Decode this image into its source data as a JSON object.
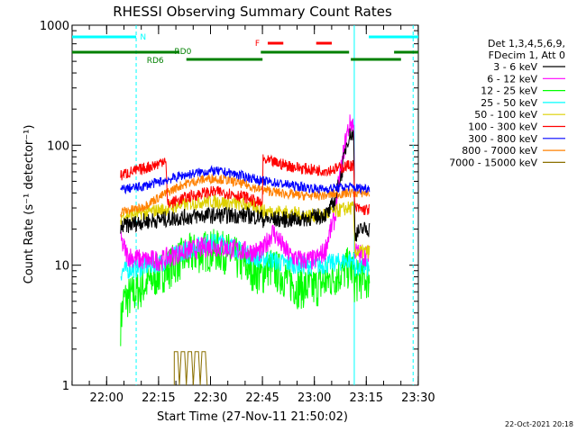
{
  "chart_data": {
    "type": "line",
    "title": "RHESSI Observing Summary Count Rates",
    "xlabel": "Start Time (27-Nov-11 21:50:02)",
    "ylabel": "Count Rate (s⁻¹ detector⁻¹)",
    "yscale": "log",
    "ylim": [
      1,
      1000
    ],
    "xlim_minutes": [
      0,
      100
    ],
    "x_ticks": [
      {
        "m": 9.97,
        "label": "22:00"
      },
      {
        "m": 24.97,
        "label": "22:15"
      },
      {
        "m": 39.97,
        "label": "22:30"
      },
      {
        "m": 54.97,
        "label": "22:45"
      },
      {
        "m": 69.97,
        "label": "23:00"
      },
      {
        "m": 84.97,
        "label": "23:15"
      },
      {
        "m": 99.97,
        "label": "23:30"
      }
    ],
    "y_ticks": [
      {
        "v": 1,
        "label": "1"
      },
      {
        "v": 10,
        "label": "10"
      },
      {
        "v": 100,
        "label": "100"
      },
      {
        "v": 1000,
        "label": "1000"
      }
    ],
    "legend": {
      "position": "right",
      "header": [
        "Det 1,3,4,5,6,9,",
        "FDecim 1, Att 0"
      ]
    },
    "series": [
      {
        "name": "3 - 6 keV",
        "color": "#000000",
        "pts": [
          [
            14,
            19
          ],
          [
            14.5,
            21
          ],
          [
            20,
            23
          ],
          [
            26,
            24
          ],
          [
            32,
            25
          ],
          [
            38,
            26
          ],
          [
            44,
            26
          ],
          [
            50,
            26
          ],
          [
            55,
            25
          ],
          [
            55.1,
            24
          ],
          [
            60,
            24
          ],
          [
            65,
            24
          ],
          [
            70,
            25
          ],
          [
            74,
            27
          ],
          [
            76,
            35
          ],
          [
            78,
            60
          ],
          [
            79.5,
            110
          ],
          [
            80.5,
            125
          ],
          [
            81.3,
            120
          ],
          [
            81.6,
            18
          ],
          [
            84,
            20
          ],
          [
            86,
            20
          ]
        ]
      },
      {
        "name": "6 - 12 keV",
        "color": "#ff00ff",
        "pts": [
          [
            14,
            16
          ],
          [
            16,
            12
          ],
          [
            20,
            11
          ],
          [
            26,
            11
          ],
          [
            32,
            13
          ],
          [
            38,
            14
          ],
          [
            40,
            14.5
          ],
          [
            44,
            14
          ],
          [
            50,
            13
          ],
          [
            55,
            13
          ],
          [
            58,
            19
          ],
          [
            61,
            14
          ],
          [
            63,
            12
          ],
          [
            66,
            11
          ],
          [
            70,
            11
          ],
          [
            73,
            13
          ],
          [
            76,
            25
          ],
          [
            78,
            70
          ],
          [
            79.5,
            130
          ],
          [
            80.5,
            155
          ],
          [
            81.3,
            150
          ],
          [
            81.6,
            13
          ],
          [
            84,
            12
          ],
          [
            86,
            12
          ]
        ]
      },
      {
        "name": "12 - 25 keV",
        "color": "#00ff00",
        "pts": [
          [
            14,
            3.2
          ],
          [
            15,
            5.2
          ],
          [
            17,
            5.5
          ],
          [
            20,
            6.5
          ],
          [
            24,
            8
          ],
          [
            28,
            9.5
          ],
          [
            33,
            12
          ],
          [
            38,
            13
          ],
          [
            41,
            13.3
          ],
          [
            45,
            12.5
          ],
          [
            50,
            10
          ],
          [
            55,
            8
          ],
          [
            56,
            10
          ],
          [
            60,
            8.5
          ],
          [
            65,
            6.5
          ],
          [
            70,
            6.5
          ],
          [
            74,
            7.5
          ],
          [
            77,
            8.5
          ],
          [
            80,
            9.5
          ],
          [
            81.3,
            9
          ],
          [
            81.6,
            7
          ],
          [
            84,
            8
          ],
          [
            86,
            7.5
          ]
        ]
      },
      {
        "name": "25 - 50 keV",
        "color": "#00ffff",
        "pts": [
          [
            14,
            8.5
          ],
          [
            14.5,
            9
          ],
          [
            20,
            9.5
          ],
          [
            26,
            10.5
          ],
          [
            32,
            13
          ],
          [
            38,
            15
          ],
          [
            41,
            15.5
          ],
          [
            45,
            15
          ],
          [
            50,
            12.5
          ],
          [
            55,
            11
          ],
          [
            56,
            11.5
          ],
          [
            60,
            10.5
          ],
          [
            66,
            10
          ],
          [
            72,
            10
          ],
          [
            76,
            10.5
          ],
          [
            80,
            11
          ],
          [
            81.3,
            11
          ],
          [
            81.6,
            9.5
          ],
          [
            84,
            9.5
          ],
          [
            86,
            9.5
          ]
        ]
      },
      {
        "name": "50 - 100 keV",
        "color": "#ddd000",
        "pts": [
          [
            14,
            24
          ],
          [
            14.5,
            26
          ],
          [
            20,
            27
          ],
          [
            26,
            29
          ],
          [
            32,
            32
          ],
          [
            38,
            34
          ],
          [
            41,
            34
          ],
          [
            45,
            33
          ],
          [
            50,
            32
          ],
          [
            55,
            30
          ],
          [
            55.1,
            28
          ],
          [
            60,
            28
          ],
          [
            64,
            27
          ],
          [
            68,
            26
          ],
          [
            72,
            26
          ],
          [
            76,
            28
          ],
          [
            80,
            30
          ],
          [
            81.3,
            30
          ],
          [
            81.6,
            13
          ],
          [
            84,
            13
          ],
          [
            86,
            13
          ]
        ]
      },
      {
        "name": "100 - 300 keV",
        "color": "#ff0000",
        "pts": [
          [
            14,
            55
          ],
          [
            14.5,
            57
          ],
          [
            20,
            63
          ],
          [
            25,
            70
          ],
          [
            27,
            78
          ],
          [
            27.5,
            32
          ],
          [
            32,
            36
          ],
          [
            38,
            40
          ],
          [
            41,
            41
          ],
          [
            45,
            40
          ],
          [
            50,
            37
          ],
          [
            55,
            32
          ],
          [
            55.1,
            75
          ],
          [
            60,
            70
          ],
          [
            65,
            65
          ],
          [
            70,
            62
          ],
          [
            74,
            62
          ],
          [
            78,
            65
          ],
          [
            80,
            68
          ],
          [
            81.3,
            68
          ],
          [
            81.6,
            30
          ],
          [
            84,
            29
          ],
          [
            86,
            29
          ]
        ]
      },
      {
        "name": "300 - 800 keV",
        "color": "#0000ff",
        "pts": [
          [
            14,
            42
          ],
          [
            14.5,
            43
          ],
          [
            20,
            45
          ],
          [
            26,
            50
          ],
          [
            32,
            56
          ],
          [
            38,
            60
          ],
          [
            41,
            61
          ],
          [
            45,
            59
          ],
          [
            50,
            55
          ],
          [
            55,
            50
          ],
          [
            56,
            50
          ],
          [
            60,
            48
          ],
          [
            66,
            45
          ],
          [
            72,
            43
          ],
          [
            76,
            44
          ],
          [
            80,
            45
          ],
          [
            81.3,
            45
          ],
          [
            81.6,
            44
          ],
          [
            84,
            44
          ],
          [
            86,
            44
          ]
        ]
      },
      {
        "name": "800 - 7000 keV",
        "color": "#ff8000",
        "pts": [
          [
            14,
            27
          ],
          [
            14.5,
            28
          ],
          [
            20,
            30
          ],
          [
            26,
            38
          ],
          [
            32,
            47
          ],
          [
            38,
            52
          ],
          [
            41,
            53
          ],
          [
            45,
            51
          ],
          [
            50,
            47
          ],
          [
            55,
            42
          ],
          [
            56,
            42
          ],
          [
            60,
            40
          ],
          [
            66,
            38
          ],
          [
            72,
            38
          ],
          [
            76,
            39
          ],
          [
            80,
            40
          ],
          [
            81.3,
            40
          ],
          [
            81.6,
            40
          ],
          [
            84,
            40
          ],
          [
            86,
            40
          ]
        ]
      },
      {
        "name": "7000 - 15000 keV",
        "color": "#8b7000",
        "pts": [
          [
            29.5,
            1
          ],
          [
            29.5,
            1.9
          ],
          [
            30.5,
            1.9
          ],
          [
            31,
            1
          ],
          [
            31.5,
            1.9
          ],
          [
            32.5,
            1.9
          ],
          [
            33,
            1
          ],
          [
            33.5,
            1.9
          ],
          [
            34.5,
            1.9
          ],
          [
            35,
            1
          ],
          [
            35.5,
            1.9
          ],
          [
            36.5,
            1.9
          ],
          [
            37,
            1
          ],
          [
            37.5,
            1.9
          ],
          [
            38.5,
            1.9
          ],
          [
            39,
            1
          ]
        ]
      }
    ],
    "flags": [
      {
        "label": "N",
        "color": "#00ffff",
        "segments": [
          [
            0,
            18.5
          ],
          [
            85.7,
            100
          ]
        ],
        "label_at": 20.5
      },
      {
        "label": "F",
        "color": "#ff0000",
        "segments": [
          [
            56.5,
            61
          ],
          [
            70.5,
            75
          ]
        ],
        "label_at": 53.5
      },
      {
        "label": "RD0",
        "color": "#008000",
        "segments": [
          [
            0,
            31
          ],
          [
            54.5,
            80
          ],
          [
            93,
            100
          ]
        ],
        "label_at": 32
      },
      {
        "label": "RD6",
        "color": "#008000",
        "segments": [
          [
            33,
            55
          ],
          [
            80.5,
            95
          ]
        ],
        "label_at": 24
      }
    ],
    "vlines": [
      {
        "m": 18.5,
        "color": "#00ffff",
        "style": "dashed"
      },
      {
        "m": 81.5,
        "color": "#00ffff",
        "style": "solid"
      },
      {
        "m": 98.5,
        "color": "#00ffff",
        "style": "dashed"
      }
    ],
    "footer": "22-Oct-2021 20:18"
  }
}
